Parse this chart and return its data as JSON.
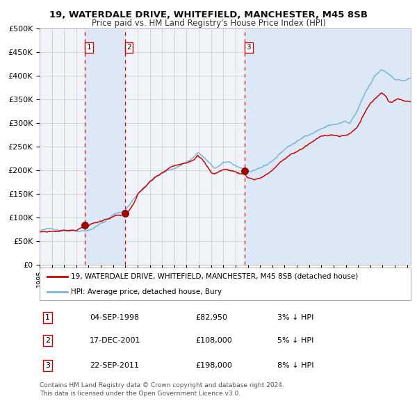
{
  "title1": "19, WATERDALE DRIVE, WHITEFIELD, MANCHESTER, M45 8SB",
  "title2": "Price paid vs. HM Land Registry's House Price Index (HPI)",
  "legend_line1": "19, WATERDALE DRIVE, WHITEFIELD, MANCHESTER, M45 8SB (detached house)",
  "legend_line2": "HPI: Average price, detached house, Bury",
  "transactions": [
    {
      "num": 1,
      "date": "04-SEP-1998",
      "price": 82950,
      "price_str": "£82,950",
      "pct": "3%",
      "dir": "↓"
    },
    {
      "num": 2,
      "date": "17-DEC-2001",
      "price": 108000,
      "price_str": "£108,000",
      "pct": "5%",
      "dir": "↓"
    },
    {
      "num": 3,
      "date": "22-SEP-2011",
      "price": 198000,
      "price_str": "£198,000",
      "pct": "8%",
      "dir": "↓"
    }
  ],
  "transaction_dates_decimal": [
    1998.674,
    2001.956,
    2011.722
  ],
  "transaction_prices": [
    82950,
    108000,
    198000
  ],
  "footnote1": "Contains HM Land Registry data © Crown copyright and database right 2024.",
  "footnote2": "This data is licensed under the Open Government Licence v3.0.",
  "hpi_line_color": "#7ab4d8",
  "price_line_color": "#cc0000",
  "dashed_line_color": "#cc0000",
  "shade_color": "#dce8f5",
  "chart_bg_color": "#f0f4f8",
  "background_color": "#ffffff",
  "grid_color": "#c8c8c8",
  "ylim": [
    0,
    500000
  ],
  "yticks": [
    0,
    50000,
    100000,
    150000,
    200000,
    250000,
    300000,
    350000,
    400000,
    450000,
    500000
  ],
  "xlim_start": 1995.0,
  "xlim_end": 2025.3,
  "hpi_anchors": [
    [
      1995.0,
      71000
    ],
    [
      1995.5,
      72000
    ],
    [
      1996.0,
      73000
    ],
    [
      1996.5,
      74500
    ],
    [
      1997.0,
      75000
    ],
    [
      1997.5,
      76000
    ],
    [
      1998.0,
      77000
    ],
    [
      1998.5,
      78500
    ],
    [
      1999.0,
      82000
    ],
    [
      1999.5,
      88000
    ],
    [
      2000.0,
      96000
    ],
    [
      2000.5,
      104000
    ],
    [
      2001.0,
      112000
    ],
    [
      2001.5,
      118000
    ],
    [
      2002.0,
      124000
    ],
    [
      2002.5,
      140000
    ],
    [
      2003.0,
      158000
    ],
    [
      2003.5,
      172000
    ],
    [
      2004.0,
      185000
    ],
    [
      2004.5,
      196000
    ],
    [
      2005.0,
      202000
    ],
    [
      2005.5,
      207000
    ],
    [
      2006.0,
      213000
    ],
    [
      2006.5,
      220000
    ],
    [
      2007.0,
      228000
    ],
    [
      2007.5,
      236000
    ],
    [
      2007.9,
      248000
    ],
    [
      2008.3,
      240000
    ],
    [
      2008.7,
      228000
    ],
    [
      2009.0,
      218000
    ],
    [
      2009.3,
      212000
    ],
    [
      2009.6,
      215000
    ],
    [
      2010.0,
      220000
    ],
    [
      2010.3,
      222000
    ],
    [
      2010.6,
      220000
    ],
    [
      2011.0,
      215000
    ],
    [
      2011.3,
      212000
    ],
    [
      2011.6,
      210000
    ],
    [
      2012.0,
      205000
    ],
    [
      2012.3,
      202000
    ],
    [
      2012.6,
      200000
    ],
    [
      2013.0,
      204000
    ],
    [
      2013.5,
      210000
    ],
    [
      2014.0,
      220000
    ],
    [
      2014.5,
      232000
    ],
    [
      2015.0,
      245000
    ],
    [
      2015.5,
      255000
    ],
    [
      2016.0,
      260000
    ],
    [
      2016.5,
      268000
    ],
    [
      2017.0,
      278000
    ],
    [
      2017.5,
      285000
    ],
    [
      2018.0,
      292000
    ],
    [
      2018.5,
      297000
    ],
    [
      2019.0,
      300000
    ],
    [
      2019.5,
      303000
    ],
    [
      2020.0,
      306000
    ],
    [
      2020.3,
      300000
    ],
    [
      2020.6,
      312000
    ],
    [
      2021.0,
      328000
    ],
    [
      2021.3,
      345000
    ],
    [
      2021.6,
      362000
    ],
    [
      2022.0,
      378000
    ],
    [
      2022.3,
      392000
    ],
    [
      2022.6,
      400000
    ],
    [
      2022.9,
      408000
    ],
    [
      2023.2,
      405000
    ],
    [
      2023.5,
      400000
    ],
    [
      2023.8,
      395000
    ],
    [
      2024.0,
      392000
    ],
    [
      2024.3,
      390000
    ],
    [
      2024.6,
      388000
    ],
    [
      2024.9,
      390000
    ],
    [
      2025.3,
      393000
    ]
  ],
  "price_anchors": [
    [
      1995.0,
      68000
    ],
    [
      1996.0,
      70000
    ],
    [
      1997.0,
      72000
    ],
    [
      1998.0,
      76000
    ],
    [
      1998.674,
      82950
    ],
    [
      1999.0,
      86000
    ],
    [
      1999.5,
      90000
    ],
    [
      2000.0,
      94000
    ],
    [
      2000.5,
      100000
    ],
    [
      2001.0,
      106000
    ],
    [
      2001.956,
      108000
    ],
    [
      2002.3,
      116000
    ],
    [
      2002.7,
      130000
    ],
    [
      2003.0,
      148000
    ],
    [
      2003.5,
      162000
    ],
    [
      2004.0,
      174000
    ],
    [
      2004.5,
      184000
    ],
    [
      2005.0,
      192000
    ],
    [
      2005.5,
      200000
    ],
    [
      2006.0,
      206000
    ],
    [
      2006.5,
      213000
    ],
    [
      2007.0,
      218000
    ],
    [
      2007.5,
      226000
    ],
    [
      2007.9,
      236000
    ],
    [
      2008.3,
      226000
    ],
    [
      2008.7,
      210000
    ],
    [
      2009.0,
      198000
    ],
    [
      2009.3,
      196000
    ],
    [
      2009.6,
      200000
    ],
    [
      2010.0,
      205000
    ],
    [
      2010.5,
      204000
    ],
    [
      2011.0,
      200000
    ],
    [
      2011.5,
      196000
    ],
    [
      2011.722,
      198000
    ],
    [
      2012.0,
      190000
    ],
    [
      2012.5,
      186000
    ],
    [
      2013.0,
      190000
    ],
    [
      2013.5,
      196000
    ],
    [
      2014.0,
      206000
    ],
    [
      2014.5,
      218000
    ],
    [
      2015.0,
      228000
    ],
    [
      2015.5,
      238000
    ],
    [
      2016.0,
      245000
    ],
    [
      2016.5,
      252000
    ],
    [
      2017.0,
      260000
    ],
    [
      2017.5,
      268000
    ],
    [
      2018.0,
      275000
    ],
    [
      2018.5,
      280000
    ],
    [
      2019.0,
      282000
    ],
    [
      2019.5,
      278000
    ],
    [
      2020.0,
      278000
    ],
    [
      2020.5,
      285000
    ],
    [
      2021.0,
      300000
    ],
    [
      2021.5,
      325000
    ],
    [
      2022.0,
      348000
    ],
    [
      2022.5,
      360000
    ],
    [
      2022.9,
      372000
    ],
    [
      2023.2,
      368000
    ],
    [
      2023.5,
      355000
    ],
    [
      2023.8,
      355000
    ],
    [
      2024.0,
      358000
    ],
    [
      2024.5,
      358000
    ],
    [
      2025.3,
      355000
    ]
  ]
}
